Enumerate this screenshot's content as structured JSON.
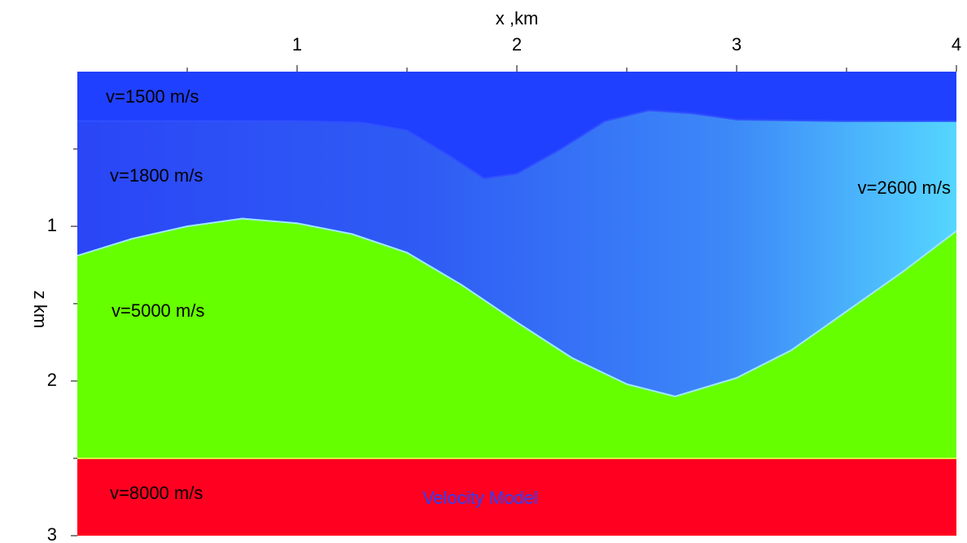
{
  "chart_data": {
    "type": "layers",
    "xlabel": "x ,km",
    "ylabel": "z km",
    "xlim": [
      0,
      4
    ],
    "xticks": [
      1,
      2,
      3,
      4
    ],
    "xticks_minor": [
      0.5,
      1.5,
      2.5,
      3.5
    ],
    "ylim": [
      0,
      3
    ],
    "yticks": [
      1,
      2,
      3
    ],
    "yticks_minor": [
      0.5,
      1.5,
      2.5
    ],
    "interfaces": [
      {
        "x": [
          0,
          0.5,
          1,
          1.3,
          1.5,
          1.7,
          1.85,
          2.0,
          2.2,
          2.4,
          2.6,
          2.8,
          3.0,
          3.5,
          4
        ],
        "z": [
          0.32,
          0.32,
          0.32,
          0.33,
          0.38,
          0.55,
          0.69,
          0.66,
          0.5,
          0.32,
          0.25,
          0.27,
          0.31,
          0.32,
          0.32
        ]
      },
      {
        "x": [
          0,
          0.25,
          0.5,
          0.75,
          1,
          1.25,
          1.5,
          1.75,
          2,
          2.25,
          2.5,
          2.72,
          3,
          3.25,
          3.5,
          3.75,
          4
        ],
        "z": [
          1.19,
          1.08,
          1.0,
          0.95,
          0.98,
          1.05,
          1.17,
          1.38,
          1.62,
          1.85,
          2.02,
          2.1,
          1.98,
          1.8,
          1.55,
          1.3,
          1.03
        ]
      },
      {
        "x": [
          0,
          4
        ],
        "z": [
          2.5,
          2.5
        ]
      }
    ],
    "annotations": [
      "v=1500 m/s",
      "v=1800 m/s",
      "v=2600 m/s",
      "v=5000 m/s",
      "v=8000 m/s"
    ],
    "title": "Velocity Model"
  }
}
